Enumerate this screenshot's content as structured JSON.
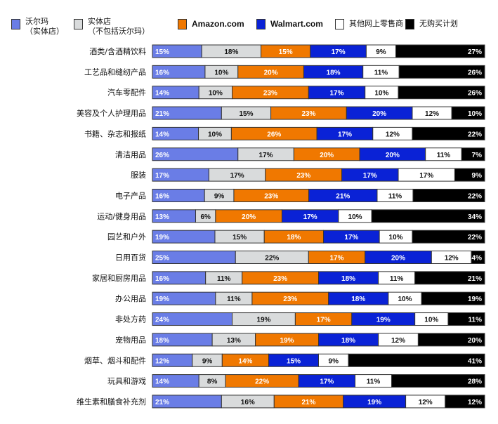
{
  "chart_data": {
    "type": "bar",
    "orientation": "horizontal",
    "stacked": true,
    "legend_position": "top",
    "grid": false,
    "series": [
      {
        "name": "沃尔玛\n（实体店）",
        "color": "#6a7de6",
        "label_color": "#ffffff"
      },
      {
        "name": "实体店\n（不包括沃尔玛）",
        "color": "#d9dbdc",
        "label_color": "#111111"
      },
      {
        "name": "Amazon.com",
        "color": "#f07800",
        "label_color": "#ffffff"
      },
      {
        "name": "Walmart.com",
        "color": "#0a22d6",
        "label_color": "#ffffff"
      },
      {
        "name": "其他网上零售商",
        "color": "#ffffff",
        "label_color": "#111111"
      },
      {
        "name": "无购买计划",
        "color": "#000000",
        "label_color": "#ffffff"
      }
    ],
    "categories": [
      "酒类/含酒精饮料",
      "工艺品和缝纫产品",
      "汽车零配件",
      "美容及个人护理用品",
      "书籍、杂志和报纸",
      "清洁用品",
      "服装",
      "电子产品",
      "运动/健身用品",
      "园艺和户外",
      "日用百货",
      "家居和厨房用品",
      "办公用品",
      "非处方药",
      "宠物用品",
      "烟草、烟斗和配件",
      "玩具和游戏",
      "维生素和膳食补充剂"
    ],
    "values": [
      [
        15,
        18,
        15,
        17,
        9,
        27
      ],
      [
        16,
        10,
        20,
        18,
        11,
        26
      ],
      [
        14,
        10,
        23,
        17,
        10,
        26
      ],
      [
        21,
        15,
        23,
        20,
        12,
        10
      ],
      [
        14,
        10,
        26,
        17,
        12,
        22
      ],
      [
        26,
        17,
        20,
        20,
        11,
        7
      ],
      [
        17,
        17,
        23,
        17,
        17,
        9
      ],
      [
        16,
        9,
        23,
        21,
        11,
        22
      ],
      [
        13,
        6,
        20,
        17,
        10,
        34
      ],
      [
        19,
        15,
        18,
        17,
        10,
        22
      ],
      [
        25,
        22,
        17,
        20,
        12,
        4
      ],
      [
        16,
        11,
        23,
        18,
        11,
        21
      ],
      [
        19,
        11,
        23,
        18,
        10,
        19
      ],
      [
        24,
        19,
        17,
        19,
        10,
        11
      ],
      [
        18,
        13,
        19,
        18,
        12,
        20
      ],
      [
        12,
        9,
        14,
        15,
        9,
        41
      ],
      [
        14,
        8,
        22,
        17,
        11,
        28
      ],
      [
        21,
        16,
        21,
        19,
        12,
        12
      ]
    ],
    "unit": "%"
  }
}
